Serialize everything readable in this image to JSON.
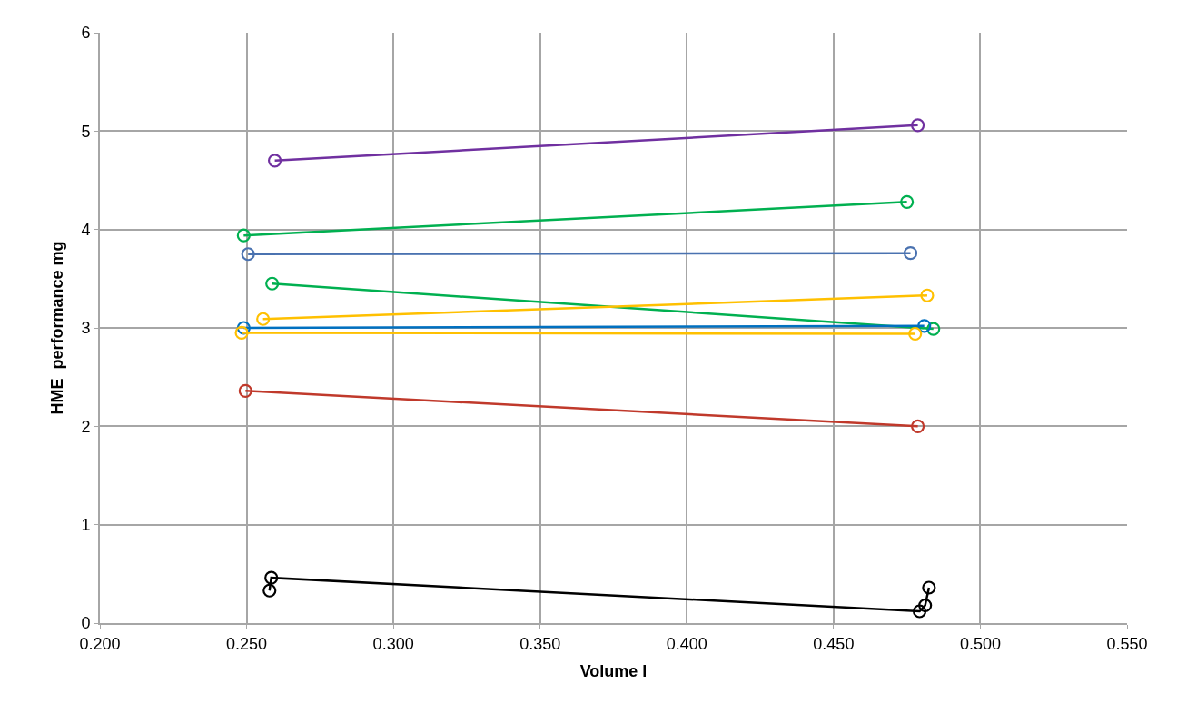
{
  "chart_data": {
    "type": "line",
    "xlabel": "Volume l",
    "ylabel": "HME  performance mg",
    "xlim": [
      0.2,
      0.55
    ],
    "xticks": [
      {
        "value": 0.2,
        "label": "0.200"
      },
      {
        "value": 0.25,
        "label": "0.250"
      },
      {
        "value": 0.3,
        "label": "0.300"
      },
      {
        "value": 0.35,
        "label": "0.350"
      },
      {
        "value": 0.4,
        "label": "0.400"
      },
      {
        "value": 0.45,
        "label": "0.450"
      },
      {
        "value": 0.5,
        "label": "0.500"
      },
      {
        "value": 0.55,
        "label": "0.550"
      }
    ],
    "ylim": [
      0,
      6
    ],
    "yticks": [
      0,
      1,
      2,
      3,
      4,
      5,
      6
    ],
    "grid": true,
    "marker": "circle",
    "line_style": "solid",
    "series": [
      {
        "color": "#7030a0",
        "x": [
          0.2596,
          0.4787
        ],
        "values": [
          4.7,
          5.06
        ]
      },
      {
        "color": "#00b050",
        "x": [
          0.249,
          0.475
        ],
        "values": [
          3.94,
          4.28
        ]
      },
      {
        "color": "#4a72b0",
        "x": [
          0.2505,
          0.4762
        ],
        "values": [
          3.75,
          3.76
        ]
      },
      {
        "color": "#00b050",
        "x": [
          0.2587,
          0.484
        ],
        "values": [
          3.45,
          2.99
        ]
      },
      {
        "color": "#ffc000",
        "x": [
          0.2556,
          0.4819
        ],
        "values": [
          3.09,
          3.33
        ]
      },
      {
        "color": "#0070c0",
        "x": [
          0.249,
          0.4809
        ],
        "values": [
          3.0,
          3.02
        ]
      },
      {
        "color": "#ffc000",
        "x": [
          0.2483,
          0.4778
        ],
        "values": [
          2.95,
          2.94
        ]
      },
      {
        "color": "#c0392b",
        "x": [
          0.2496,
          0.4787
        ],
        "values": [
          2.36,
          2.0
        ]
      },
      {
        "color": "#000000",
        "x": [
          0.2578,
          0.2584,
          0.4793,
          0.4812,
          0.4825
        ],
        "values": [
          0.33,
          0.46,
          0.12,
          0.18,
          0.36
        ]
      }
    ]
  }
}
